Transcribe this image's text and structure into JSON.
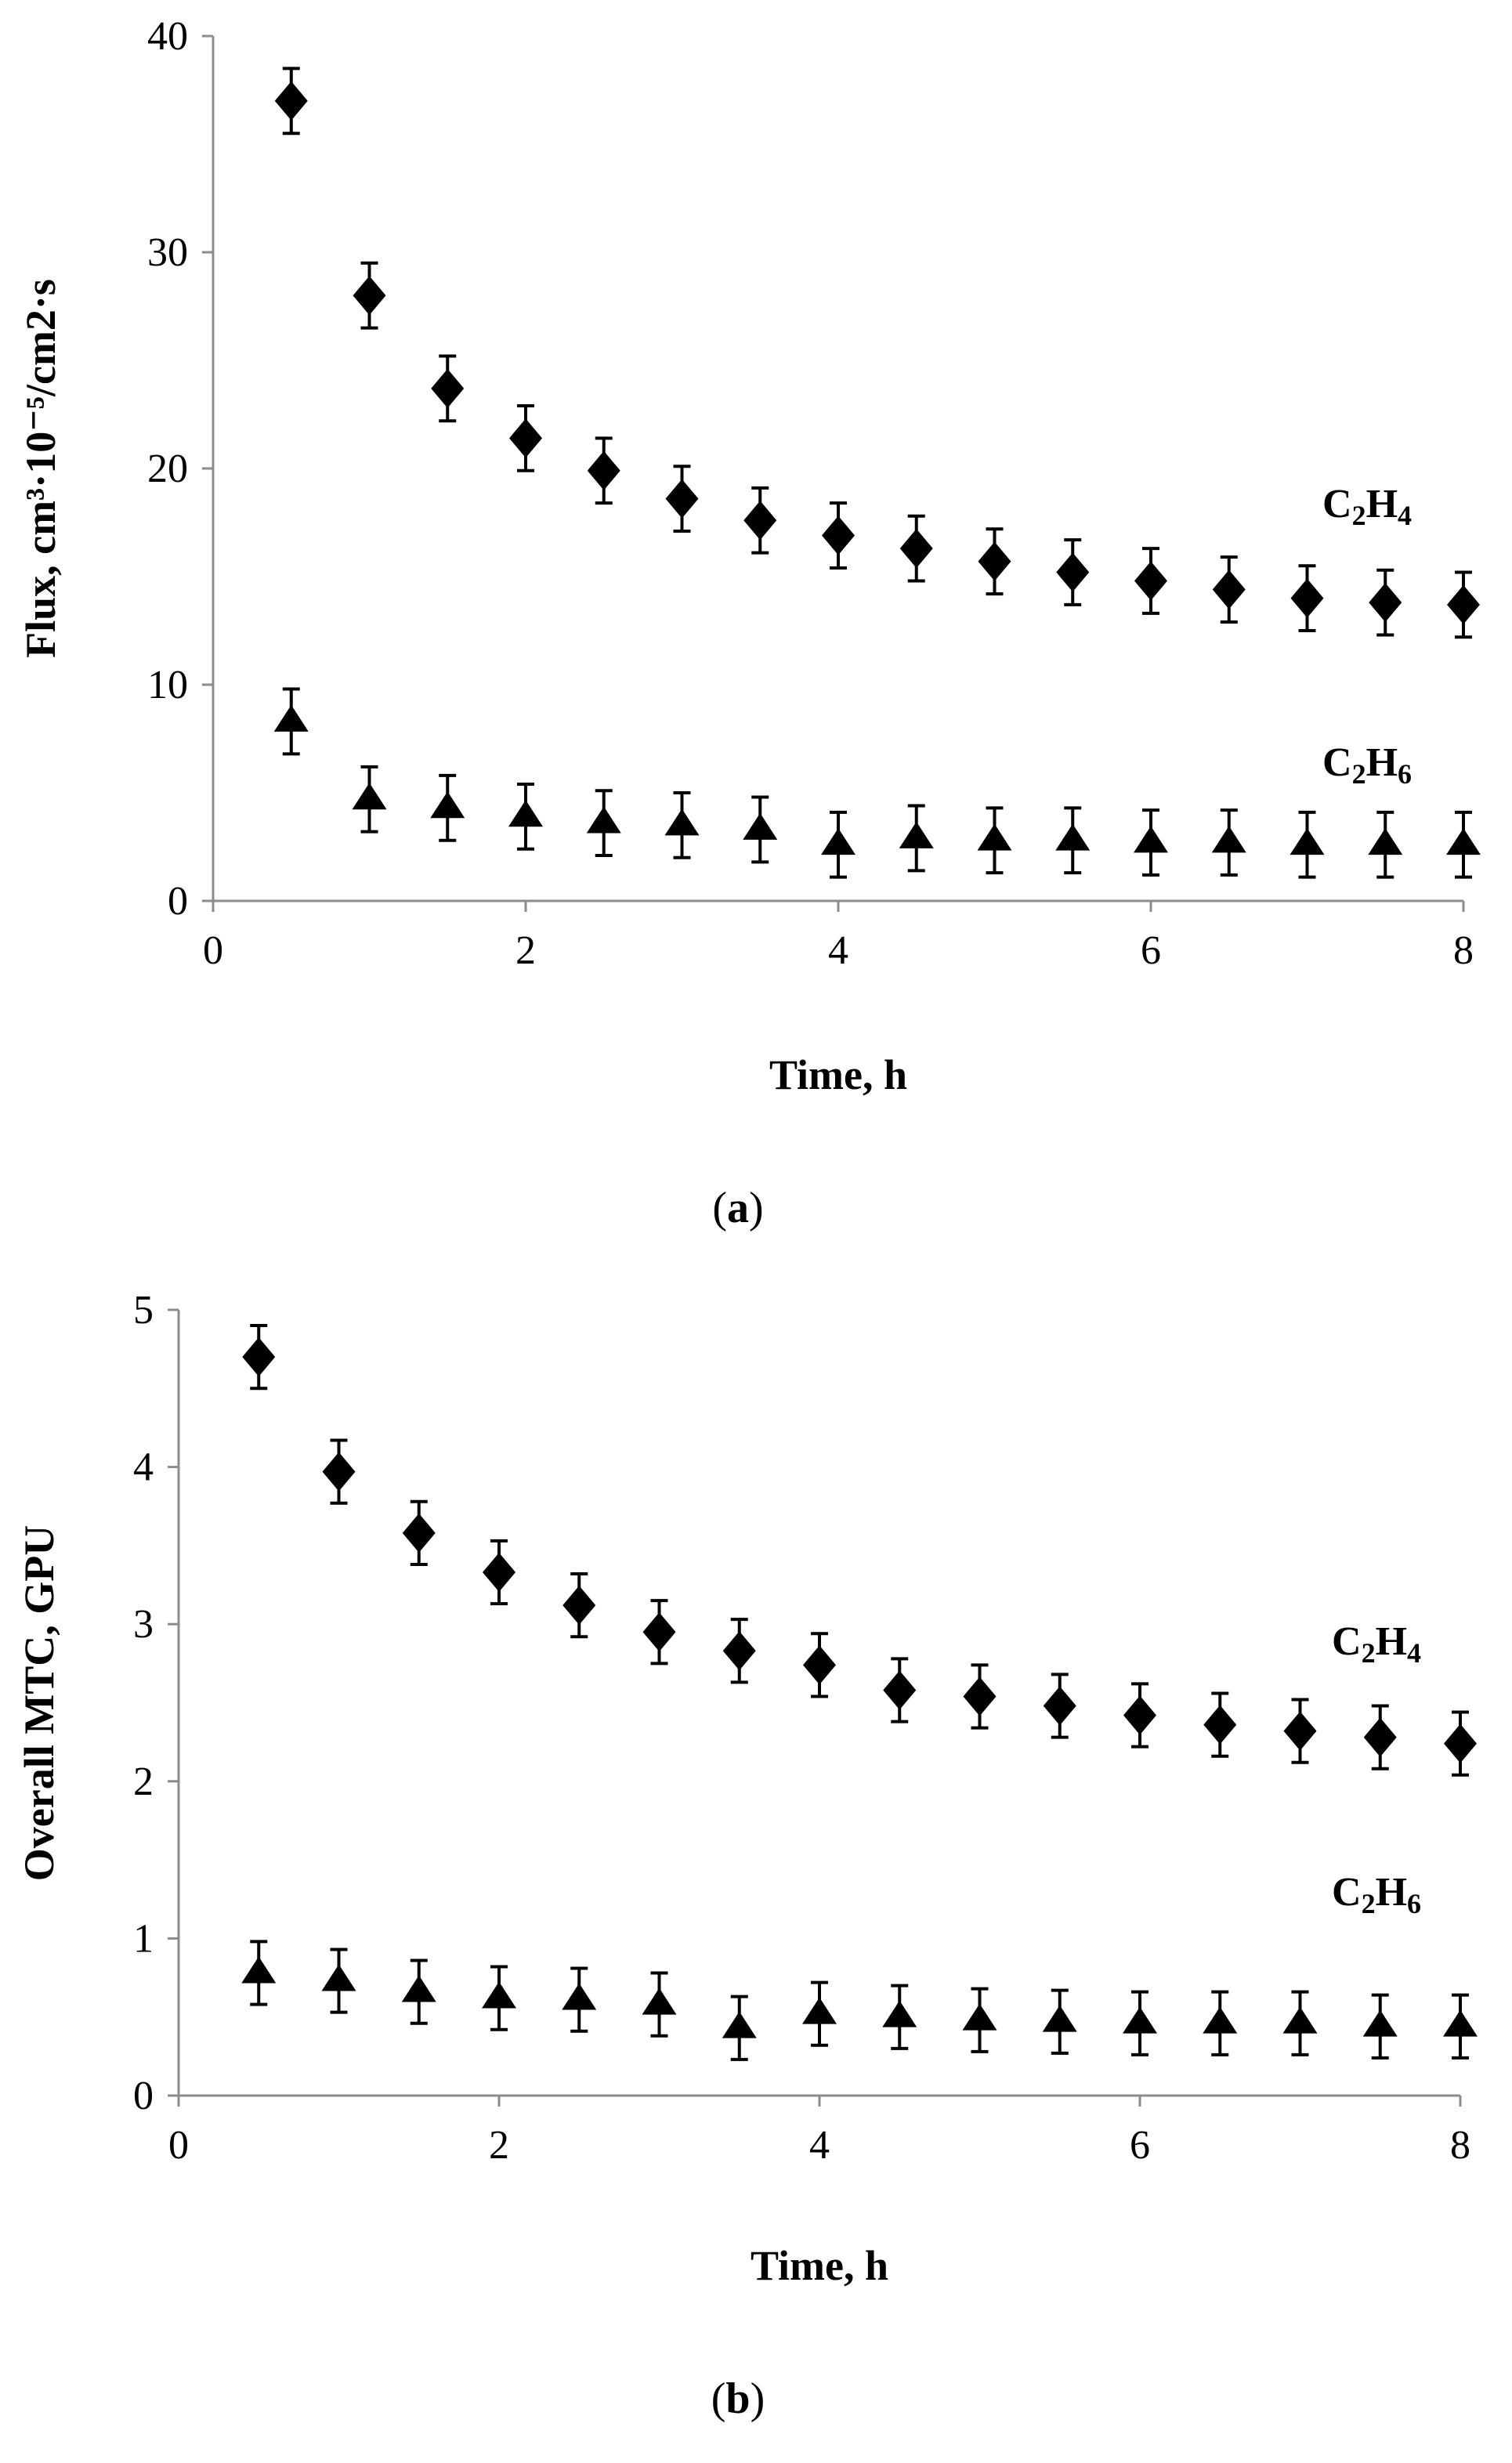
{
  "chart_data": [
    {
      "type": "scatter",
      "panel": "a",
      "caption": [
        "(",
        "a",
        ")"
      ],
      "xlabel": "Time, h",
      "ylabel": "Flux, cm³·10⁻⁵/cm2·s",
      "xlim": [
        0,
        8
      ],
      "ylim": [
        0,
        40
      ],
      "xticks": [
        "0",
        "2",
        "4",
        "6",
        "8"
      ],
      "yticks": [
        "0",
        "10",
        "20",
        "30",
        "40"
      ],
      "x": [
        0.5,
        1,
        1.5,
        2,
        2.5,
        3,
        3.5,
        4,
        4.5,
        5,
        5.5,
        6,
        6.5,
        7,
        7.5,
        8
      ],
      "series": [
        {
          "name": "C2H4",
          "label": {
            "base1": "C",
            "sub1": "2",
            "base2": "H",
            "sub2": "4"
          },
          "marker": "diamond",
          "values": [
            37.0,
            28.0,
            23.7,
            21.4,
            19.9,
            18.6,
            17.6,
            16.9,
            16.3,
            15.7,
            15.2,
            14.8,
            14.4,
            14.0,
            13.8,
            13.7
          ],
          "error": 1.5
        },
        {
          "name": "C2H6",
          "label": {
            "base1": "C",
            "sub1": "2",
            "base2": "H",
            "sub2": "6"
          },
          "marker": "triangle",
          "values": [
            8.3,
            4.7,
            4.3,
            3.9,
            3.6,
            3.5,
            3.3,
            2.6,
            2.9,
            2.8,
            2.8,
            2.7,
            2.7,
            2.6,
            2.6,
            2.6
          ],
          "error": 1.5
        }
      ]
    },
    {
      "type": "scatter",
      "panel": "b",
      "caption": [
        "(",
        "b",
        ")"
      ],
      "xlabel": "Time, h",
      "ylabel": "Overall MTC, GPU",
      "xlim": [
        0,
        8
      ],
      "ylim": [
        0,
        5
      ],
      "xticks": [
        "0",
        "2",
        "4",
        "6",
        "8"
      ],
      "yticks": [
        "0",
        "1",
        "2",
        "3",
        "4",
        "5"
      ],
      "x": [
        0.5,
        1,
        1.5,
        2,
        2.5,
        3,
        3.5,
        4,
        4.5,
        5,
        5.5,
        6,
        6.5,
        7,
        7.5,
        8
      ],
      "series": [
        {
          "name": "C2H4",
          "label": {
            "base1": "C",
            "sub1": "2",
            "base2": "H",
            "sub2": "4"
          },
          "marker": "diamond",
          "values": [
            4.7,
            3.97,
            3.58,
            3.33,
            3.12,
            2.95,
            2.83,
            2.74,
            2.58,
            2.54,
            2.48,
            2.42,
            2.36,
            2.32,
            2.28,
            2.24
          ],
          "error": 0.2
        },
        {
          "name": "C2H6",
          "label": {
            "base1": "C",
            "sub1": "2",
            "base2": "H",
            "sub2": "6"
          },
          "marker": "triangle",
          "values": [
            0.78,
            0.73,
            0.66,
            0.62,
            0.61,
            0.58,
            0.43,
            0.52,
            0.5,
            0.48,
            0.47,
            0.46,
            0.46,
            0.46,
            0.44,
            0.44
          ],
          "error": 0.2
        }
      ]
    }
  ]
}
